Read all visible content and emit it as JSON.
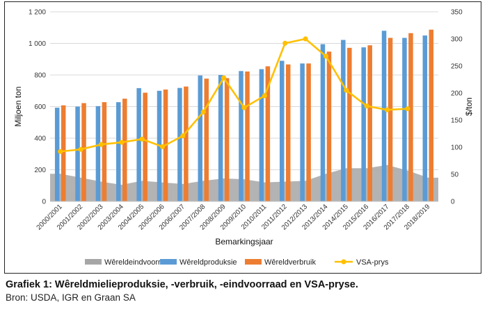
{
  "chart_data": {
    "type": "bar",
    "categories": [
      "2000/2001",
      "2001/2002",
      "2002/2003",
      "2003/2004",
      "2004/2005",
      "2005/2006",
      "2006/2007",
      "2007/2008",
      "2008/2009",
      "2009/2010",
      "2010/2011",
      "2011/2012",
      "2012/2013",
      "2013/2014",
      "2014/2015",
      "2015/2016",
      "2016/2017",
      "2017/2018",
      "2018/2019"
    ],
    "series": [
      {
        "name": "Wêreldeindvoorraad",
        "type": "area",
        "axis": "left",
        "color": "#a6a6a6",
        "values": [
          175,
          150,
          125,
          105,
          130,
          120,
          110,
          130,
          145,
          140,
          120,
          125,
          130,
          175,
          210,
          210,
          230,
          195,
          150
        ]
      },
      {
        "name": "Wêreldproduksie",
        "type": "bar",
        "axis": "left",
        "color": "#5b9bd5",
        "values": [
          593,
          600,
          603,
          628,
          717,
          700,
          718,
          797,
          800,
          825,
          837,
          890,
          873,
          995,
          1022,
          975,
          1080,
          1035,
          1050
        ]
      },
      {
        "name": "Wêreldverbruik",
        "type": "bar",
        "axis": "left",
        "color": "#ed7d31",
        "values": [
          608,
          622,
          628,
          650,
          688,
          708,
          727,
          777,
          780,
          822,
          855,
          867,
          873,
          948,
          972,
          988,
          1035,
          1065,
          1087
        ]
      },
      {
        "name": "VSA-prys",
        "type": "line",
        "axis": "right",
        "color": "#ffc000",
        "values": [
          92,
          96,
          105,
          109,
          115,
          101,
          121,
          165,
          228,
          173,
          195,
          292,
          300,
          268,
          205,
          176,
          169,
          171,
          null
        ]
      }
    ],
    "xlabel": "Bemarkingsjaar",
    "ylabel": "Miljoen ton",
    "y2label": "$/ton",
    "ylim": [
      0,
      1200
    ],
    "y2lim": [
      0,
      350
    ],
    "yticks": [
      "0",
      "200",
      "400",
      "600",
      "800",
      "1 000",
      "1 200"
    ],
    "y2ticks": [
      "0",
      "50",
      "100",
      "150",
      "200",
      "250",
      "300",
      "350"
    ],
    "grid": true,
    "legend_position": "bottom"
  },
  "caption": {
    "title": "Grafiek 1: Wêreldmielieproduksie, -verbruik, -eindvoorraad en VSA-pryse.",
    "source": "Bron: USDA, IGR en Graan SA"
  }
}
